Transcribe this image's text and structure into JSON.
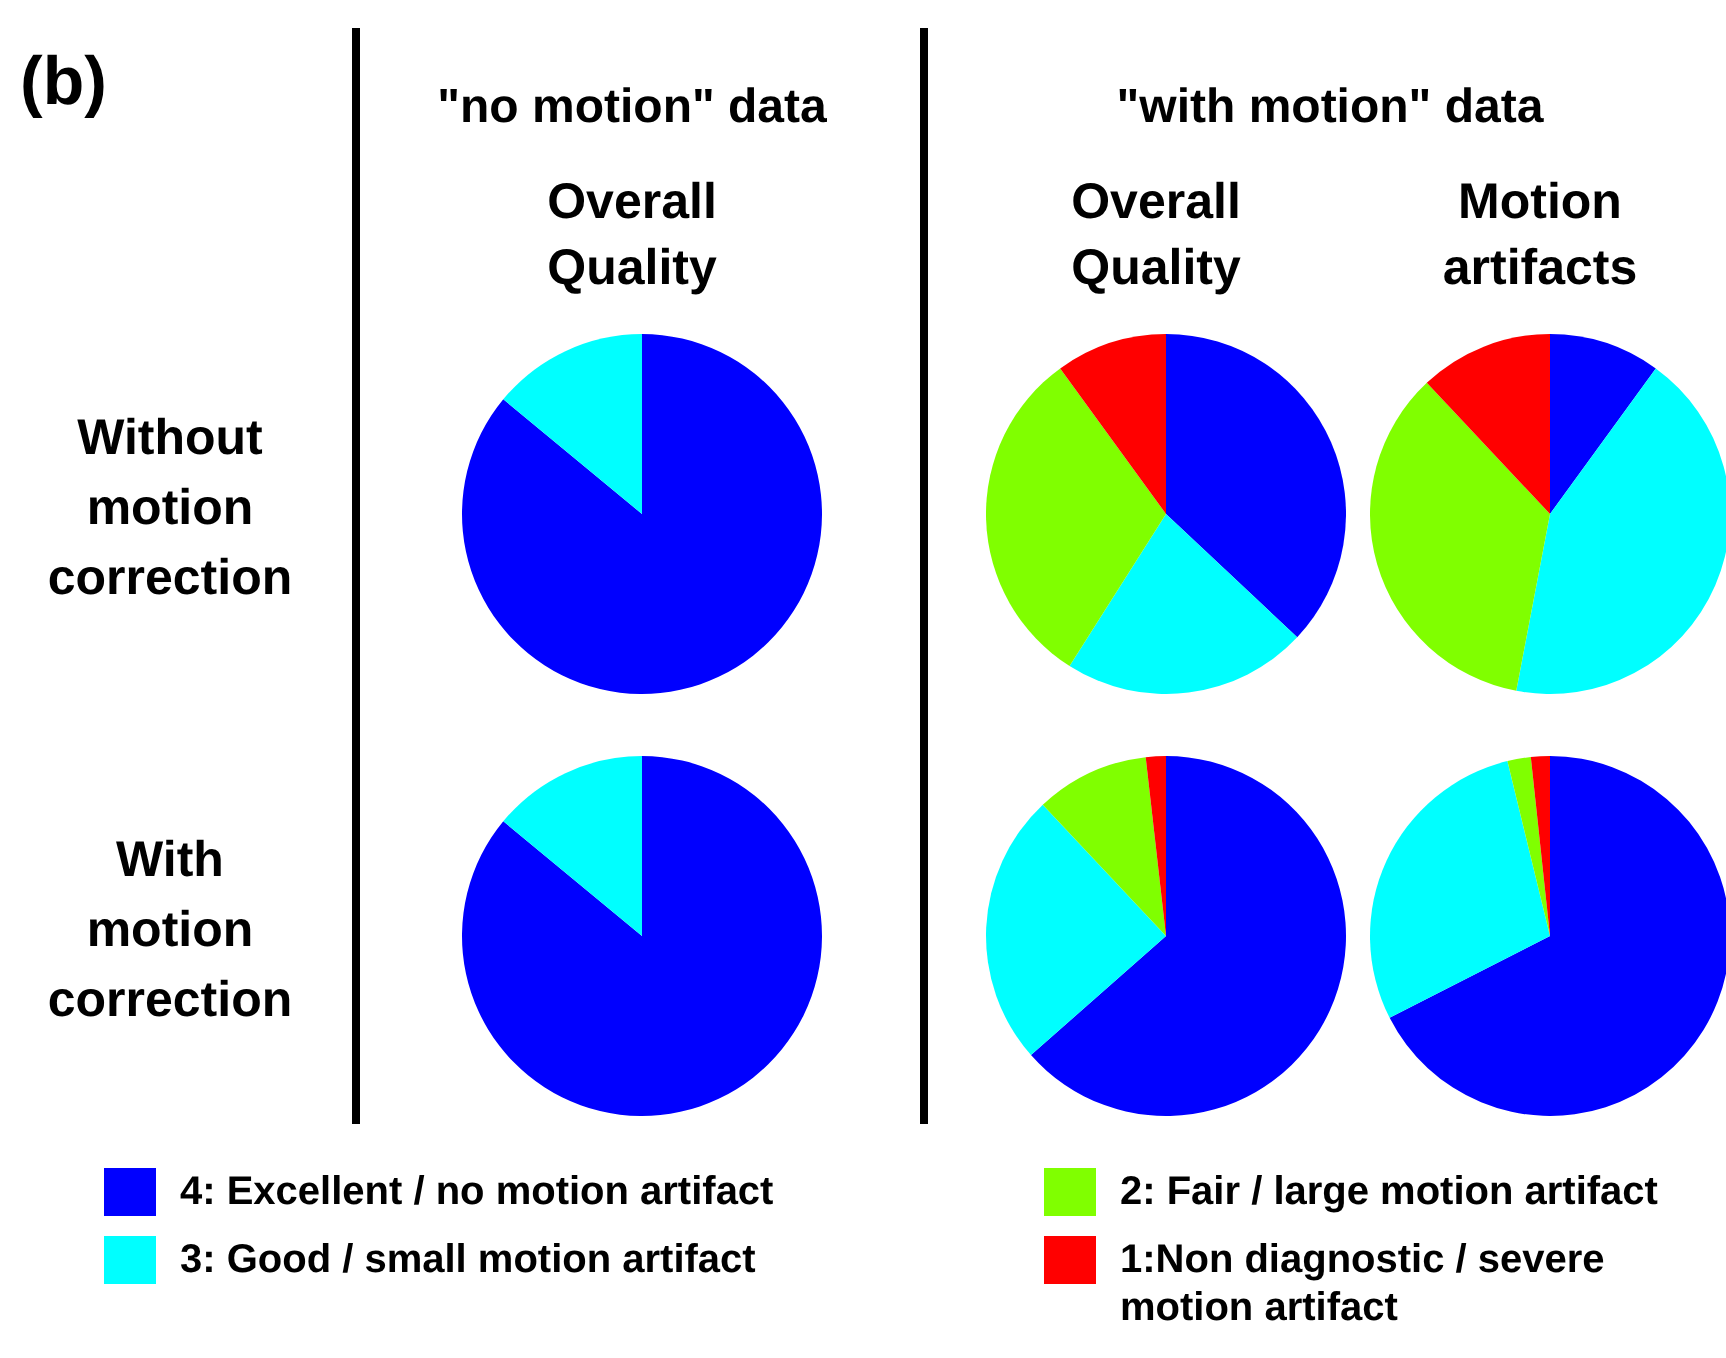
{
  "chart_data": [
    {
      "type": "pie",
      "title": "Overall Quality",
      "ylabel": "Without motion correction",
      "annotations": [
        "(b)",
        "\"no motion\" data"
      ],
      "colors": [
        "#0000ff",
        "#00ffff"
      ],
      "values": [
        86,
        14
      ]
    },
    {
      "type": "pie",
      "title": "Overall Quality",
      "annotations": [
        "\"with motion\" data"
      ],
      "colors": [
        "#0000ff",
        "#00ffff",
        "#80ff00",
        "#ff0000"
      ],
      "values": [
        37,
        22,
        31,
        10
      ]
    },
    {
      "type": "pie",
      "title": "Motion artifacts",
      "colors": [
        "#0000ff",
        "#00ffff",
        "#80ff00",
        "#ff0000"
      ],
      "values": [
        10,
        43,
        35,
        12
      ]
    },
    {
      "type": "pie",
      "ylabel": "With motion correction",
      "colors": [
        "#0000ff",
        "#00ffff"
      ],
      "values": [
        86,
        14
      ]
    },
    {
      "type": "pie",
      "colors": [
        "#0000ff",
        "#00ffff",
        "#80ff00",
        "#ff0000"
      ],
      "values": [
        63.5,
        24.5,
        10.2,
        1.8
      ]
    },
    {
      "type": "pie",
      "legend": "bottom",
      "categories": [
        "4: Excellent / no motion artifact",
        "3: Good / small motion artifact",
        "2: Fair / large motion artifact",
        "1:Non diagnostic / severe motion artifact"
      ],
      "colors": [
        "#0000ff",
        "#00ffff",
        "#80ff00",
        "#ff0000"
      ],
      "values": [
        67.5,
        28.7,
        2.1,
        1.7
      ]
    }
  ]
}
